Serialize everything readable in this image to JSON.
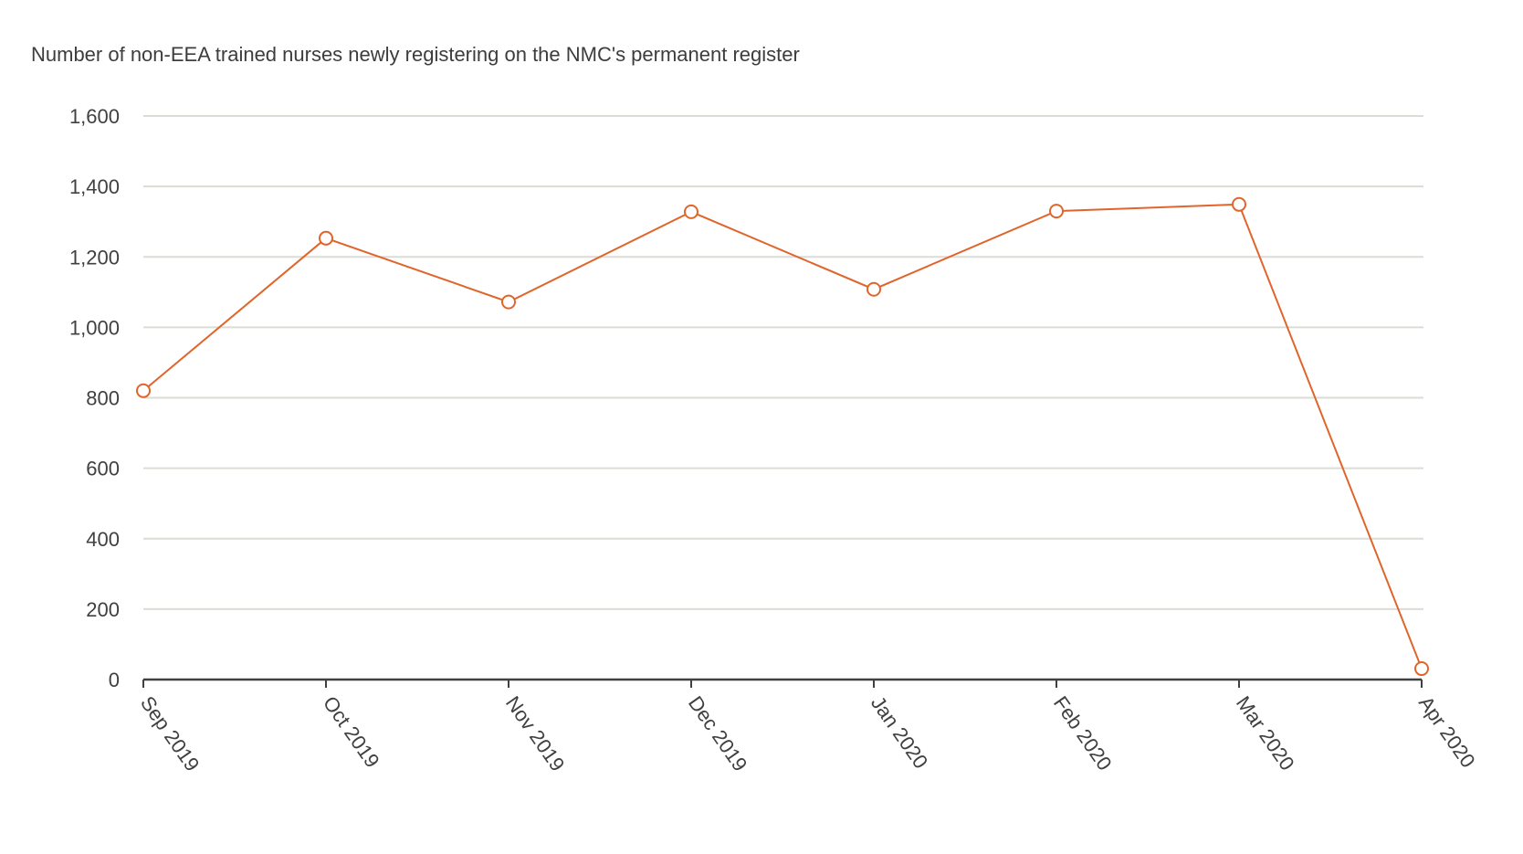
{
  "chart_data": {
    "type": "line",
    "title": "Number of non-EEA trained nurses newly registering on the NMC's permanent register",
    "xlabel": "",
    "ylabel": "",
    "categories": [
      "Sep 2019",
      "Oct 2019",
      "Nov 2019",
      "Dec 2019",
      "Jan 2020",
      "Feb 2020",
      "Mar 2020",
      "Apr 2020"
    ],
    "series": [
      {
        "name": "Non-EEA trained nurses newly registering",
        "values": [
          820,
          1253,
          1072,
          1328,
          1108,
          1330,
          1349,
          31
        ],
        "color": "#e0652b"
      }
    ],
    "ylim": [
      0,
      1600
    ],
    "yticks": [
      0,
      200,
      400,
      600,
      800,
      1000,
      1200,
      1400,
      1600
    ],
    "ytick_labels": [
      "0",
      "200",
      "400",
      "600",
      "800",
      "1,000",
      "1,200",
      "1,400",
      "1,600"
    ],
    "grid": true,
    "legend": "none",
    "gridline_color": "#dcdcd6",
    "axis_color": "#404040"
  }
}
